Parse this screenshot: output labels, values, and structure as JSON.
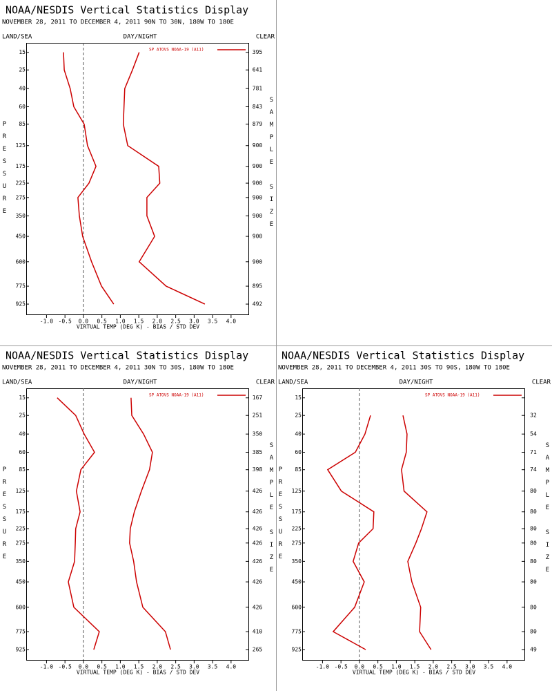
{
  "chart_data": [
    {
      "type": "line",
      "title": "NOAA/NESDIS Vertical Statistics Display",
      "subtitle": "NOVEMBER 28, 2011 TO DECEMBER 4, 2011 90N TO 30N, 180W TO 180E",
      "left_header": "LAND/SEA",
      "center_header": "DAY/NIGHT",
      "right_header": "CLEAR",
      "ylabel": "PRESSURE",
      "y2label": "SAMPLE SIZE",
      "xlabel": "VIRTUAL TEMP (DEG K) - BIAS / STD DEV",
      "pressure": [
        15,
        25,
        40,
        60,
        85,
        125,
        175,
        225,
        275,
        350,
        450,
        600,
        775,
        925
      ],
      "sample_size": [
        395,
        641,
        781,
        843,
        879,
        900,
        900,
        900,
        900,
        900,
        900,
        900,
        895,
        492
      ],
      "series": [
        {
          "name": "SP ATOVS NOAA-19 (A11)",
          "color": "#cc0000",
          "values": [
            -0.54,
            -0.52,
            -0.36,
            -0.26,
            0.02,
            0.11,
            0.34,
            0.15,
            -0.15,
            -0.11,
            -0.02,
            0.22,
            0.49,
            0.82
          ]
        },
        {
          "color": "#cc0000",
          "values": [
            1.51,
            1.33,
            1.12,
            1.1,
            1.08,
            1.2,
            2.04,
            2.07,
            1.72,
            1.72,
            1.93,
            1.51,
            2.24,
            3.29
          ]
        }
      ],
      "xlim": [
        -1.55,
        4.47
      ],
      "xticks": [
        {
          "value": -1,
          "label": "-1.0"
        },
        {
          "value": -0.5,
          "label": "-0.5"
        },
        {
          "value": 0,
          "label": "0.0"
        },
        {
          "value": 0.5,
          "label": "0.5"
        },
        {
          "value": 1,
          "label": "1.0"
        },
        {
          "value": 1.5,
          "label": "1.5"
        },
        {
          "value": 2,
          "label": "2.0"
        },
        {
          "value": 2.5,
          "label": "2.5"
        },
        {
          "value": 3,
          "label": "3.0"
        },
        {
          "value": 3.5,
          "label": "3.5"
        },
        {
          "value": 4,
          "label": "4.0"
        }
      ],
      "ylim": [
        11,
        1020
      ],
      "yscale_exponent": 0.286
    },
    {
      "type": "line",
      "title": "NOAA/NESDIS Vertical Statistics Display",
      "subtitle": "NOVEMBER 28, 2011 TO DECEMBER 4, 2011 30N TO 30S, 180W TO 180E",
      "left_header": "LAND/SEA",
      "center_header": "DAY/NIGHT",
      "right_header": "CLEAR",
      "ylabel": "PRESSURE",
      "y2label": "SAMPLE SIZE",
      "xlabel": "VIRTUAL TEMP (DEG K) - BIAS / STD DEV",
      "pressure": [
        15,
        25,
        40,
        60,
        85,
        125,
        175,
        225,
        275,
        350,
        450,
        600,
        775,
        925
      ],
      "sample_size": [
        167,
        251,
        350,
        385,
        398,
        426,
        426,
        426,
        426,
        426,
        426,
        426,
        410,
        265
      ],
      "series": [
        {
          "name": "SP ATOVS NOAA-19 (A11)",
          "color": "#cc0000",
          "values": [
            -0.71,
            -0.21,
            0.02,
            0.3,
            -0.07,
            -0.19,
            -0.09,
            -0.21,
            -0.22,
            -0.24,
            -0.41,
            -0.26,
            0.43,
            0.28
          ]
        },
        {
          "color": "#cc0000",
          "values": [
            1.29,
            1.31,
            1.63,
            1.87,
            1.79,
            1.57,
            1.38,
            1.27,
            1.25,
            1.36,
            1.44,
            1.61,
            2.22,
            2.36
          ]
        }
      ],
      "xlim": [
        -1.55,
        4.47
      ],
      "xticks": [
        {
          "value": -1,
          "label": "-1.0"
        },
        {
          "value": -0.5,
          "label": "-0.5"
        },
        {
          "value": 0,
          "label": "0.0"
        },
        {
          "value": 0.5,
          "label": "0.5"
        },
        {
          "value": 1,
          "label": "1.0"
        },
        {
          "value": 1.5,
          "label": "1.5"
        },
        {
          "value": 2,
          "label": "2.0"
        },
        {
          "value": 2.5,
          "label": "2.5"
        },
        {
          "value": 3,
          "label": "3.0"
        },
        {
          "value": 3.5,
          "label": "3.5"
        },
        {
          "value": 4,
          "label": "4.0"
        }
      ],
      "ylim": [
        11,
        1020
      ],
      "yscale_exponent": 0.286
    },
    {
      "type": "line",
      "title": "NOAA/NESDIS Vertical Statistics Display",
      "subtitle": "NOVEMBER 28, 2011 TO DECEMBER 4, 2011 30S TO 90S, 180W TO 180E",
      "left_header": "LAND/SEA",
      "center_header": "DAY/NIGHT",
      "right_header": "CLEAR",
      "ylabel": "PRESSURE",
      "y2label": "SAMPLE SIZE",
      "xlabel": "VIRTUAL TEMP (DEG K) - BIAS / STD DEV",
      "pressure": [
        15,
        25,
        40,
        60,
        85,
        125,
        175,
        225,
        275,
        350,
        450,
        600,
        775,
        925
      ],
      "sample_size": [
        null,
        32,
        54,
        71,
        74,
        80,
        80,
        80,
        80,
        80,
        80,
        80,
        80,
        49
      ],
      "series": [
        {
          "name": "SP ATOVS NOAA-19 (A11)",
          "color": "#cc0000",
          "values": [
            null,
            0.3,
            0.15,
            -0.11,
            -0.86,
            -0.49,
            0.39,
            0.37,
            -0.02,
            -0.17,
            0.13,
            -0.13,
            -0.71,
            0.17
          ]
        },
        {
          "color": "#cc0000",
          "values": [
            null,
            1.18,
            1.29,
            1.27,
            1.14,
            1.21,
            1.83,
            1.68,
            1.53,
            1.31,
            1.42,
            1.66,
            1.63,
            1.94
          ]
        }
      ],
      "xlim": [
        -1.55,
        4.47
      ],
      "xticks": [
        {
          "value": -1,
          "label": "-1.0"
        },
        {
          "value": -0.5,
          "label": "-0.5"
        },
        {
          "value": 0,
          "label": "0.0"
        },
        {
          "value": 0.5,
          "label": "0.5"
        },
        {
          "value": 1,
          "label": "1.0"
        },
        {
          "value": 1.5,
          "label": "1.5"
        },
        {
          "value": 2,
          "label": "2.0"
        },
        {
          "value": 2.5,
          "label": "2.5"
        },
        {
          "value": 3,
          "label": "3.0"
        },
        {
          "value": 3.5,
          "label": "3.5"
        },
        {
          "value": 4,
          "label": "4.0"
        }
      ],
      "ylim": [
        11,
        1020
      ],
      "yscale_exponent": 0.286
    }
  ]
}
